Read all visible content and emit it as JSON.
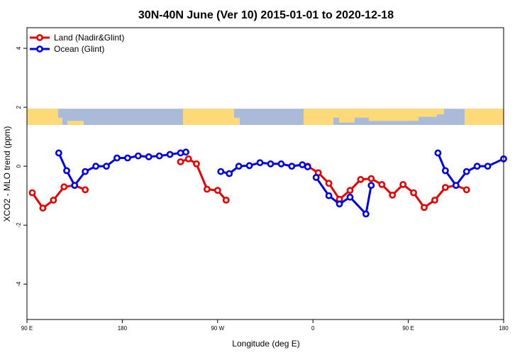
{
  "chart_data": {
    "type": "line",
    "title": "30N-40N June (Ver 10)   2015-01-01 to 2020-12-18",
    "xlabel": "Longitude (deg E)",
    "ylabel": "XCO2 - MLO trend (ppm)",
    "xlim": [
      90,
      540
    ],
    "ylim": [
      -5.2,
      4.7
    ],
    "x_ticks": [
      {
        "value": 90,
        "label": "90 E"
      },
      {
        "value": 180,
        "label": "180"
      },
      {
        "value": 270,
        "label": "90 W"
      },
      {
        "value": 360,
        "label": "0"
      },
      {
        "value": 450,
        "label": "90 E"
      },
      {
        "value": 540,
        "label": "180"
      }
    ],
    "y_ticks": [
      {
        "value": 4,
        "label": "4"
      },
      {
        "value": 2,
        "label": "2"
      },
      {
        "value": 0,
        "label": "0"
      },
      {
        "value": -2,
        "label": "-2"
      },
      {
        "value": -4,
        "label": "-4"
      }
    ],
    "legend_position": "top-left",
    "series": [
      {
        "name": "Land (Nadir&Glint)",
        "color": "#e60000",
        "segments": [
          [
            [
              95,
              -0.9
            ],
            [
              105,
              -1.42
            ],
            [
              115,
              -1.15
            ],
            [
              125,
              -0.7
            ],
            [
              135,
              -0.65
            ],
            [
              145,
              -0.8
            ]
          ],
          [
            [
              235,
              0.15
            ],
            [
              242.5,
              0.25
            ],
            [
              250,
              0.08
            ],
            [
              260,
              -0.78
            ],
            [
              270,
              -0.82
            ],
            [
              278,
              -1.15
            ]
          ],
          [
            [
              355,
              0.0
            ],
            [
              365,
              -0.22
            ],
            [
              375,
              -0.58
            ],
            [
              385,
              -1.12
            ],
            [
              395,
              -0.82
            ],
            [
              405,
              -0.45
            ],
            [
              415,
              -0.42
            ],
            [
              425,
              -0.62
            ],
            [
              435,
              -0.98
            ],
            [
              445,
              -0.62
            ],
            [
              455,
              -0.9
            ],
            [
              465,
              -1.4
            ],
            [
              475,
              -1.15
            ],
            [
              485,
              -0.72
            ],
            [
              495,
              -0.65
            ],
            [
              505,
              -0.8
            ]
          ]
        ]
      },
      {
        "name": "Ocean (Glint)",
        "color": "#0000e6",
        "segments": [
          [
            [
              120,
              0.45
            ],
            [
              127.5,
              -0.15
            ],
            [
              135,
              -0.65
            ],
            [
              145,
              -0.18
            ],
            [
              155,
              0.0
            ],
            [
              165,
              0.0
            ],
            [
              175,
              0.28
            ],
            [
              185,
              0.28
            ],
            [
              195,
              0.35
            ],
            [
              205,
              0.32
            ],
            [
              215,
              0.35
            ],
            [
              225,
              0.4
            ],
            [
              235,
              0.45
            ],
            [
              240,
              0.48
            ]
          ],
          [
            [
              273,
              -0.18
            ],
            [
              281,
              -0.25
            ],
            [
              290,
              0.0
            ],
            [
              300,
              0.02
            ],
            [
              310,
              0.12
            ],
            [
              320,
              0.08
            ],
            [
              330,
              0.08
            ],
            [
              340,
              0.0
            ],
            [
              350,
              0.05
            ],
            [
              355,
              -0.02
            ]
          ],
          [
            [
              363,
              -0.38
            ],
            [
              375,
              -1.0
            ],
            [
              385,
              -1.28
            ],
            [
              395,
              -1.05
            ],
            [
              410,
              -1.62
            ],
            [
              415,
              -0.65
            ]
          ],
          [
            [
              478,
              0.45
            ],
            [
              485,
              -0.15
            ],
            [
              495,
              -0.65
            ],
            [
              505,
              -0.18
            ],
            [
              515,
              0.0
            ],
            [
              525,
              0.0
            ],
            [
              540,
              0.25
            ]
          ]
        ]
      }
    ],
    "map_band": {
      "ymin": 1.4,
      "ymax": 1.95,
      "ocean_color": "#a9bbd9",
      "land_color": "#fed978"
    }
  }
}
